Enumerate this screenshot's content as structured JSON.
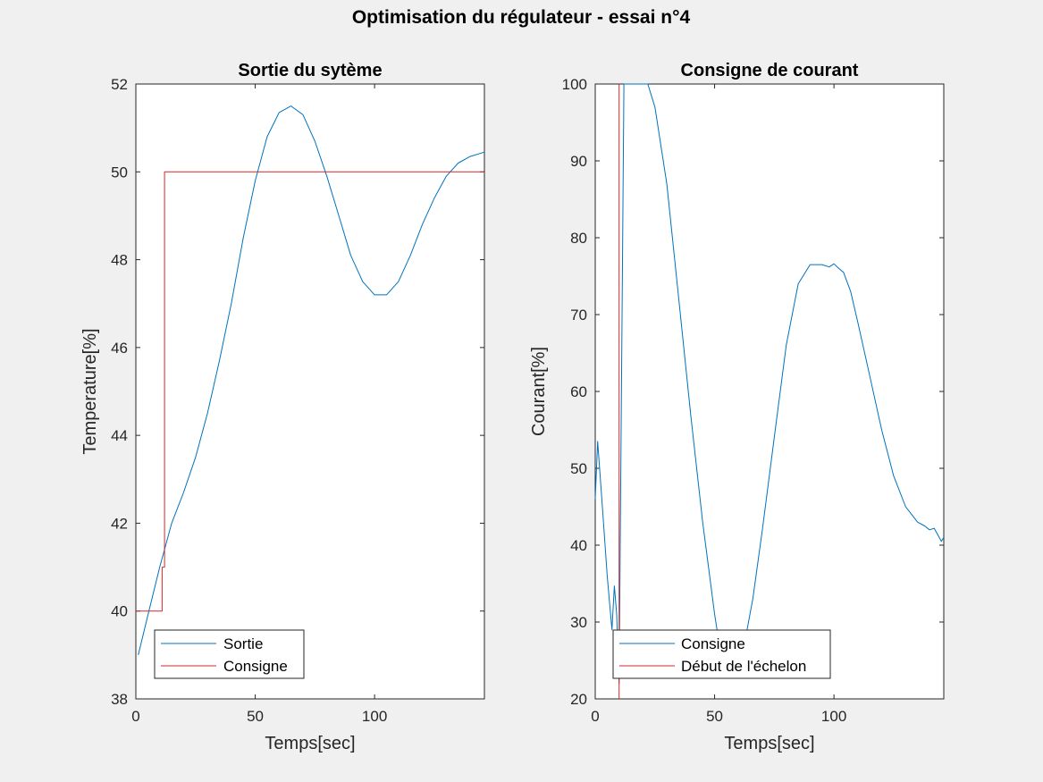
{
  "figure_title": "Optimisation du régulateur - essai n°4",
  "chart_data": [
    {
      "type": "line",
      "title": "Sortie du sytème",
      "xlabel": "Temps[sec]",
      "ylabel": "Temperature[%]",
      "xlim": [
        0,
        146
      ],
      "ylim": [
        38,
        52
      ],
      "xticks": [
        0,
        50,
        100
      ],
      "yticks": [
        38,
        40,
        42,
        44,
        46,
        48,
        50,
        52
      ],
      "grid": false,
      "legend_position": "bottom-left",
      "series": [
        {
          "name": "Sortie",
          "color": "#0072bd",
          "x": [
            1,
            5,
            10,
            15,
            20,
            25,
            30,
            35,
            40,
            45,
            50,
            55,
            60,
            65,
            70,
            75,
            80,
            85,
            90,
            95,
            100,
            105,
            110,
            115,
            120,
            125,
            130,
            135,
            140,
            146
          ],
          "y": [
            39.0,
            39.9,
            41.0,
            42.0,
            42.7,
            43.5,
            44.5,
            45.7,
            47.0,
            48.5,
            49.8,
            50.8,
            51.35,
            51.5,
            51.3,
            50.7,
            49.9,
            49.0,
            48.1,
            47.5,
            47.2,
            47.2,
            47.5,
            48.1,
            48.8,
            49.4,
            49.9,
            50.2,
            50.35,
            50.45
          ]
        },
        {
          "name": "Consigne",
          "color": "#d62728",
          "x": [
            0,
            11,
            11,
            12,
            12,
            146
          ],
          "y": [
            40.0,
            40.0,
            41.0,
            41.0,
            50.0,
            50.0
          ]
        }
      ]
    },
    {
      "type": "line",
      "title": "Consigne de courant",
      "xlabel": "Temps[sec]",
      "ylabel": "Courant[%]",
      "xlim": [
        0,
        146
      ],
      "ylim": [
        20,
        100
      ],
      "xticks": [
        0,
        50,
        100
      ],
      "yticks": [
        20,
        30,
        40,
        50,
        60,
        70,
        80,
        90,
        100
      ],
      "grid": false,
      "legend_position": "bottom-left",
      "series": [
        {
          "name": "Consigne",
          "color": "#0072bd",
          "x": [
            0,
            1,
            3,
            5,
            7,
            8,
            9,
            10,
            12,
            14,
            16,
            18,
            20,
            22,
            25,
            30,
            35,
            40,
            45,
            50,
            53,
            56,
            60,
            63,
            66,
            70,
            75,
            80,
            85,
            90,
            95,
            98,
            100,
            102,
            104,
            107,
            110,
            115,
            120,
            125,
            130,
            135,
            138,
            140,
            142,
            145,
            146
          ],
          "y": [
            46,
            53.5,
            45,
            36,
            29,
            34.7,
            31,
            22,
            100,
            100,
            100,
            100,
            100,
            100,
            97,
            87,
            72,
            57,
            43,
            31,
            25,
            24,
            26,
            28,
            33,
            42,
            54,
            66,
            74,
            76.5,
            76.5,
            76.2,
            76.6,
            76,
            75.5,
            73,
            69,
            62,
            55,
            49,
            45,
            43,
            42.5,
            42,
            42.2,
            40.5,
            41
          ]
        },
        {
          "name": "Début de l'échelon",
          "color": "#d62728",
          "x": [
            10,
            10
          ],
          "y": [
            20,
            100
          ]
        }
      ]
    }
  ]
}
